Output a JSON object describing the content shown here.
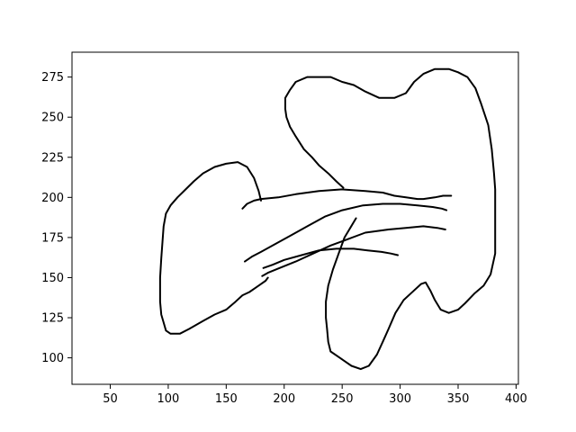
{
  "chart_data": {
    "type": "line",
    "title": "",
    "xlabel": "",
    "ylabel": "",
    "xlim": [
      17,
      402
    ],
    "ylim": [
      83.5,
      290.5
    ],
    "xticks": [
      50,
      100,
      150,
      200,
      250,
      300,
      350,
      400
    ],
    "yticks": [
      100,
      125,
      150,
      175,
      200,
      225,
      250,
      275
    ],
    "grid": false,
    "legend": false,
    "line_color": "#000000",
    "series": [
      {
        "points": [
          [
            251,
            206
          ],
          [
            245,
            210
          ],
          [
            238,
            215
          ],
          [
            230,
            220
          ],
          [
            224,
            225
          ],
          [
            217,
            230
          ],
          [
            210,
            238
          ],
          [
            205,
            244
          ],
          [
            202,
            250
          ],
          [
            201,
            255
          ],
          [
            201,
            262
          ],
          [
            205,
            267
          ],
          [
            210,
            272
          ],
          [
            220,
            275
          ],
          [
            230,
            275
          ],
          [
            240,
            275
          ],
          [
            250,
            272
          ],
          [
            260,
            270
          ],
          [
            270,
            266
          ],
          [
            282,
            262
          ],
          [
            295,
            262
          ],
          [
            305,
            265
          ],
          [
            312,
            272
          ],
          [
            320,
            277
          ],
          [
            330,
            280
          ],
          [
            342,
            280
          ],
          [
            350,
            278
          ],
          [
            358,
            275
          ],
          [
            365,
            268
          ],
          [
            370,
            258
          ],
          [
            376,
            245
          ],
          [
            379,
            230
          ],
          [
            381,
            215
          ],
          [
            382,
            205
          ],
          [
            382,
            190
          ],
          [
            382,
            175
          ],
          [
            382,
            165
          ],
          [
            378,
            152
          ],
          [
            372,
            145
          ],
          [
            364,
            140
          ],
          [
            356,
            134
          ],
          [
            350,
            130
          ],
          [
            342,
            128
          ],
          [
            335,
            130
          ],
          [
            330,
            136
          ],
          [
            326,
            142
          ],
          [
            322,
            147
          ],
          [
            318,
            146
          ],
          [
            312,
            142
          ],
          [
            303,
            136
          ],
          [
            296,
            128
          ],
          [
            290,
            118
          ],
          [
            285,
            110
          ],
          [
            280,
            102
          ],
          [
            273,
            95
          ],
          [
            266,
            93
          ],
          [
            258,
            95
          ],
          [
            248,
            100
          ],
          [
            240,
            104
          ],
          [
            238,
            110
          ],
          [
            237,
            118
          ],
          [
            236,
            125
          ],
          [
            236,
            135
          ],
          [
            238,
            145
          ],
          [
            242,
            155
          ],
          [
            247,
            165
          ],
          [
            252,
            175
          ],
          [
            257,
            181
          ],
          [
            262,
            187
          ]
        ]
      },
      {
        "points": [
          [
            186,
            150
          ],
          [
            184,
            148
          ],
          [
            180,
            146
          ],
          [
            176,
            144
          ],
          [
            170,
            141
          ],
          [
            164,
            139
          ],
          [
            158,
            135
          ],
          [
            150,
            130
          ],
          [
            140,
            127
          ],
          [
            130,
            123
          ],
          [
            118,
            118
          ],
          [
            110,
            115
          ],
          [
            102,
            115
          ],
          [
            98,
            117
          ],
          [
            96,
            122
          ],
          [
            94,
            127
          ],
          [
            93,
            135
          ],
          [
            93,
            150
          ],
          [
            94,
            162
          ],
          [
            95,
            172
          ],
          [
            96,
            182
          ],
          [
            98,
            190
          ],
          [
            102,
            195
          ],
          [
            108,
            200
          ],
          [
            115,
            205
          ],
          [
            122,
            210
          ],
          [
            130,
            215
          ],
          [
            140,
            219
          ],
          [
            150,
            221
          ],
          [
            160,
            222
          ],
          [
            168,
            219
          ],
          [
            174,
            212
          ],
          [
            178,
            204
          ],
          [
            180,
            198
          ]
        ]
      },
      {
        "points": [
          [
            164,
            193
          ],
          [
            168,
            196
          ],
          [
            174,
            198
          ],
          [
            180,
            199
          ],
          [
            195,
            200
          ],
          [
            210,
            202
          ],
          [
            230,
            204
          ],
          [
            250,
            205
          ],
          [
            270,
            204
          ],
          [
            285,
            203
          ],
          [
            295,
            201
          ],
          [
            305,
            200
          ],
          [
            315,
            199
          ],
          [
            320,
            199
          ],
          [
            330,
            200
          ],
          [
            337,
            201
          ],
          [
            344,
            201
          ]
        ]
      },
      {
        "points": [
          [
            166,
            160
          ],
          [
            172,
            163
          ],
          [
            180,
            166
          ],
          [
            190,
            170
          ],
          [
            205,
            176
          ],
          [
            220,
            182
          ],
          [
            235,
            188
          ],
          [
            250,
            192
          ],
          [
            268,
            195
          ],
          [
            285,
            196
          ],
          [
            300,
            196
          ],
          [
            315,
            195
          ],
          [
            328,
            194
          ],
          [
            336,
            193
          ],
          [
            340,
            192
          ]
        ]
      },
      {
        "points": [
          [
            181,
            151
          ],
          [
            186,
            153
          ],
          [
            196,
            156
          ],
          [
            210,
            160
          ],
          [
            225,
            165
          ],
          [
            240,
            170
          ],
          [
            255,
            174
          ],
          [
            270,
            178
          ],
          [
            290,
            180
          ],
          [
            305,
            181
          ],
          [
            320,
            182
          ],
          [
            332,
            181
          ],
          [
            339,
            180
          ]
        ]
      },
      {
        "points": [
          [
            182,
            156
          ],
          [
            190,
            158
          ],
          [
            200,
            161
          ],
          [
            215,
            164
          ],
          [
            230,
            167
          ],
          [
            245,
            168
          ],
          [
            260,
            168
          ],
          [
            272,
            167
          ],
          [
            284,
            166
          ],
          [
            292,
            165
          ],
          [
            298,
            164
          ]
        ]
      }
    ]
  }
}
